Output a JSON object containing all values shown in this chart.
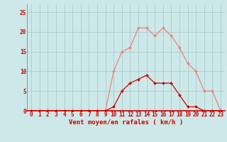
{
  "x_labels": [
    0,
    1,
    2,
    3,
    4,
    5,
    6,
    7,
    8,
    9,
    10,
    11,
    12,
    13,
    14,
    15,
    16,
    17,
    18,
    19,
    20,
    21,
    22,
    23
  ],
  "rafales": [
    0,
    0,
    0,
    0,
    0,
    0,
    0,
    0,
    0,
    0,
    10,
    15,
    16,
    21,
    21,
    19,
    21,
    19,
    16,
    12,
    10,
    5,
    5,
    0
  ],
  "moyen": [
    0,
    0,
    0,
    0,
    0,
    0,
    0,
    0,
    0,
    0,
    1,
    5,
    7,
    8,
    9,
    7,
    7,
    7,
    4,
    1,
    1,
    0,
    0,
    0
  ],
  "rafales_color": "#f08080",
  "moyen_color": "#cc0000",
  "bg_color": "#cce8e8",
  "grid_color": "#aacccc",
  "xlabel": "Vent moyen/en rafales ( km/h )",
  "ylim": [
    0,
    27
  ],
  "xlim": [
    -0.5,
    23.5
  ],
  "yticks": [
    0,
    5,
    10,
    15,
    20,
    25
  ],
  "tick_fontsize": 5.5,
  "xlabel_fontsize": 6.5
}
